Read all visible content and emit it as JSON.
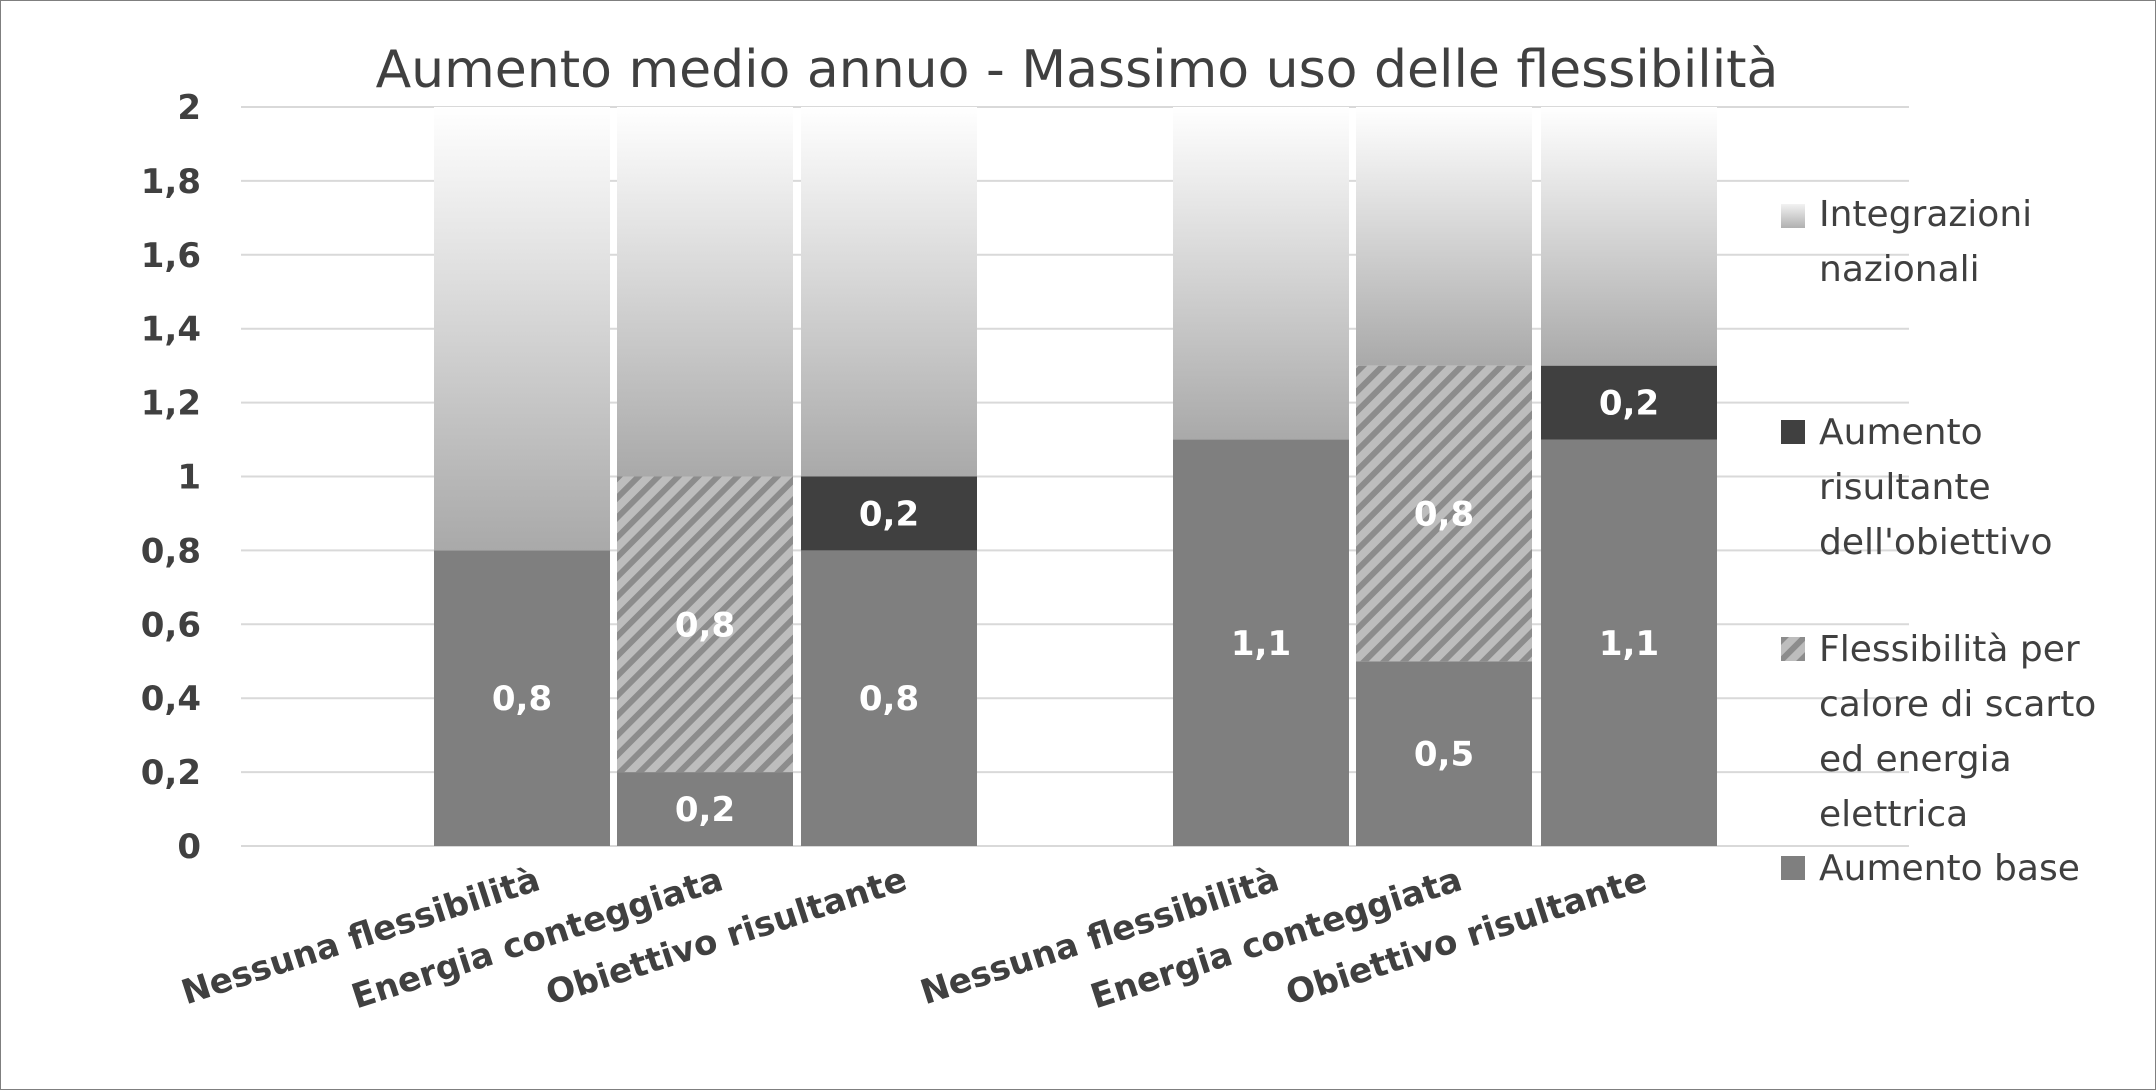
{
  "chart_data": {
    "type": "bar",
    "stacked": true,
    "title": "Aumento medio annuo - Massimo uso delle flessibilità",
    "xlabel": "",
    "ylabel": "",
    "ylim": [
      0,
      2
    ],
    "yticks": [
      0,
      0.2,
      0.4,
      0.6,
      0.8,
      1,
      1.2,
      1.4,
      1.6,
      1.8,
      2
    ],
    "ytick_labels": [
      "0",
      "0,2",
      "0,4",
      "0,6",
      "0,8",
      "1",
      "1,2",
      "1,4",
      "1,6",
      "1,8",
      "2"
    ],
    "grid": true,
    "legend_position": "right",
    "groups": [
      {
        "categories": [
          "Nessuna flessibilità",
          "Energia conteggiata",
          "Obiettivo risultante"
        ]
      },
      {
        "categories": [
          "Nessuna flessibilità",
          "Energia conteggiata",
          "Obiettivo risultante"
        ]
      }
    ],
    "categories": [
      "Nessuna flessibilità",
      "Energia conteggiata",
      "Obiettivo risultante",
      "Nessuna flessibilità",
      "Energia conteggiata",
      "Obiettivo risultante"
    ],
    "series": [
      {
        "name": "Aumento base",
        "color": "#7f7f7f",
        "pattern": "solid",
        "values": [
          0.8,
          0.2,
          0.8,
          1.1,
          0.5,
          1.1
        ],
        "labels": [
          "0,8",
          "0,2",
          "0,8",
          "1,1",
          "0,5",
          "1,1"
        ]
      },
      {
        "name": "Flessibilità per calore di scarto ed energia elettrica",
        "color": "#a6a6a6",
        "pattern": "hatch",
        "values": [
          0,
          0.8,
          0,
          0,
          0.8,
          0
        ],
        "labels": [
          "",
          "0,8",
          "",
          "",
          "0,8",
          ""
        ]
      },
      {
        "name": "Aumento risultante dell'obiettivo",
        "color": "#404040",
        "pattern": "solid",
        "values": [
          0,
          0,
          0.2,
          0,
          0,
          0.2
        ],
        "labels": [
          "",
          "",
          "0,2",
          "",
          "",
          "0,2"
        ]
      },
      {
        "name": "Integrazioni nazionali",
        "color": "#bfbfbf",
        "pattern": "gradient",
        "values": [
          1.2,
          1.0,
          1.0,
          0.9,
          0.7,
          0.7
        ],
        "labels": [
          "",
          "",
          "",
          "",
          "",
          ""
        ]
      }
    ],
    "legend": [
      {
        "series_index": 3,
        "lines": [
          "Integrazioni",
          "nazionali"
        ]
      },
      {
        "series_index": 2,
        "lines": [
          "Aumento",
          "risultante",
          "dell'obiettivo"
        ]
      },
      {
        "series_index": 1,
        "lines": [
          "Flessibilità per",
          "calore di scarto",
          "ed energia",
          "elettrica"
        ]
      },
      {
        "series_index": 0,
        "lines": [
          "Aumento base"
        ]
      }
    ]
  }
}
